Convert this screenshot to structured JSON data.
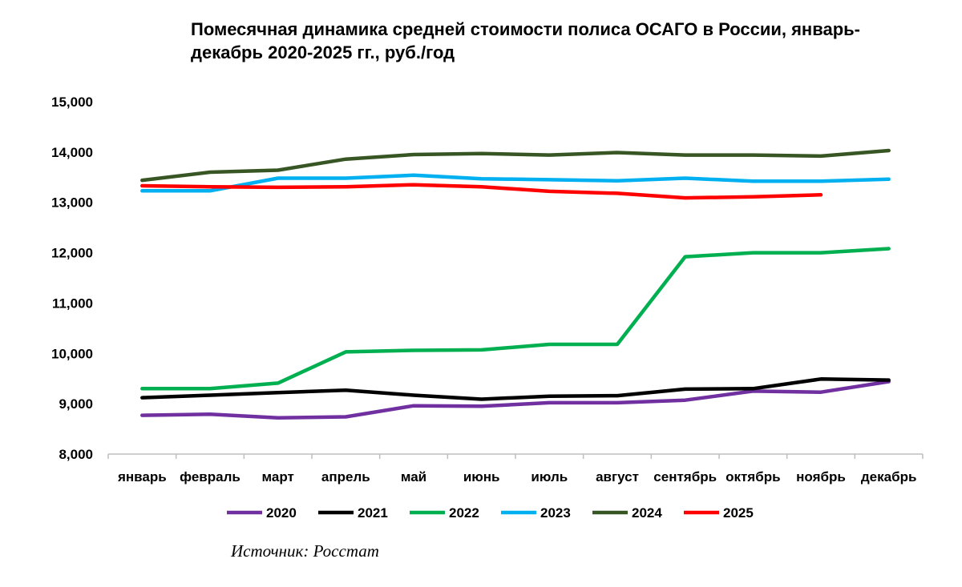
{
  "chart_data": {
    "type": "line",
    "title": "Помесячная динамика средней стоимости полиса ОСАГО в России, январь-декабрь 2020-2025 гг., руб./год",
    "xlabel": "",
    "ylabel": "",
    "ylim": [
      8000,
      15000
    ],
    "yticks": [
      8000,
      9000,
      10000,
      11000,
      12000,
      13000,
      14000,
      15000
    ],
    "ytick_labels": [
      "8,000",
      "9,000",
      "10,000",
      "11,000",
      "12,000",
      "13,000",
      "14,000",
      "15,000"
    ],
    "categories": [
      "январь",
      "февраль",
      "март",
      "апрель",
      "май",
      "июнь",
      "июль",
      "август",
      "сентябрь",
      "октябрь",
      "ноябрь",
      "декабрь"
    ],
    "grid": false,
    "legend_position": "bottom",
    "series": [
      {
        "name": "2020",
        "color": "#7030A0",
        "values": [
          8770,
          8790,
          8720,
          8740,
          8960,
          8950,
          9020,
          9020,
          9070,
          9250,
          9230,
          9440
        ]
      },
      {
        "name": "2021",
        "color": "#000000",
        "values": [
          9120,
          9170,
          9220,
          9270,
          9170,
          9090,
          9150,
          9160,
          9290,
          9300,
          9490,
          9470
        ]
      },
      {
        "name": "2022",
        "color": "#00B050",
        "values": [
          9300,
          9300,
          9410,
          10030,
          10060,
          10070,
          10180,
          10180,
          11920,
          12000,
          12000,
          12080
        ]
      },
      {
        "name": "2023",
        "color": "#00B0F0",
        "values": [
          13230,
          13230,
          13480,
          13480,
          13540,
          13470,
          13450,
          13430,
          13480,
          13420,
          13420,
          13460
        ]
      },
      {
        "name": "2024",
        "color": "#375623",
        "values": [
          13440,
          13600,
          13640,
          13860,
          13950,
          13970,
          13940,
          13990,
          13940,
          13940,
          13920,
          14030
        ]
      },
      {
        "name": "2025",
        "color": "#FF0000",
        "values": [
          13330,
          13310,
          13300,
          13310,
          13350,
          13310,
          13220,
          13180,
          13090,
          13110,
          13150,
          null
        ]
      }
    ]
  },
  "source_note": "Источник: Росстат"
}
